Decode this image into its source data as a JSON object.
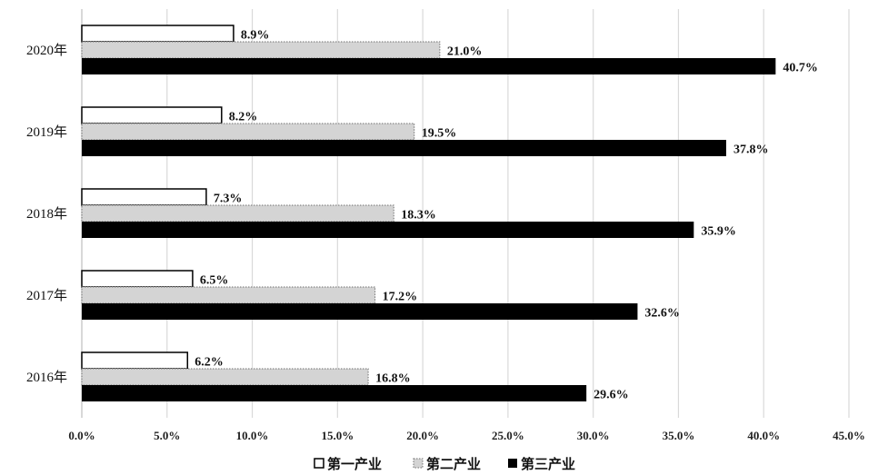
{
  "chart_data": {
    "type": "bar",
    "orientation": "horizontal",
    "categories": [
      "2020年",
      "2019年",
      "2018年",
      "2017年",
      "2016年"
    ],
    "series": [
      {
        "name": "第一产业",
        "values": [
          8.9,
          8.2,
          7.3,
          6.5,
          6.2
        ],
        "labels": [
          "8.9%",
          "8.2%",
          "7.3%",
          "6.5%",
          "6.2%"
        ],
        "color": "#ffffff"
      },
      {
        "name": "第二产业",
        "values": [
          21.0,
          19.5,
          18.3,
          17.2,
          16.8
        ],
        "labels": [
          "21.0%",
          "19.5%",
          "18.3%",
          "17.2%",
          "16.8%"
        ],
        "color": "#d4d4d4"
      },
      {
        "name": "第三产业",
        "values": [
          40.7,
          37.8,
          35.9,
          32.6,
          29.6
        ],
        "labels": [
          "40.7%",
          "37.8%",
          "35.9%",
          "32.6%",
          "29.6%"
        ],
        "color": "#000000"
      }
    ],
    "xlim": [
      0,
      45
    ],
    "xticks": [
      0,
      5,
      10,
      15,
      20,
      25,
      30,
      35,
      40,
      45
    ],
    "xtick_labels": [
      "0.0%",
      "5.0%",
      "10.0%",
      "15.0%",
      "20.0%",
      "25.0%",
      "30.0%",
      "35.0%",
      "40.0%",
      "45.0%"
    ],
    "grid": "vertical",
    "gridline_color": "#d9d9d9",
    "legend": "bottom"
  }
}
